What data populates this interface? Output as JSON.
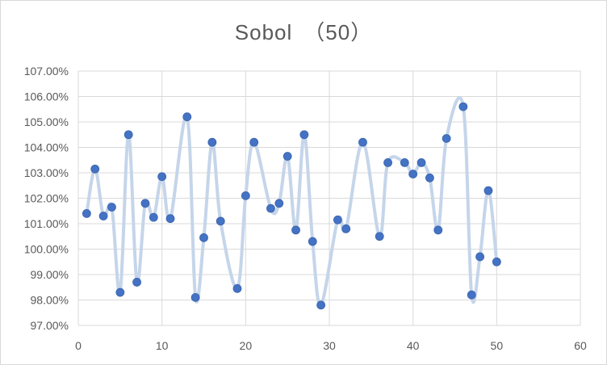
{
  "chart_data": {
    "type": "scatter",
    "title": "Sobol　（50）",
    "xlabel": "",
    "ylabel": "",
    "xlim": [
      0,
      60
    ],
    "ylim": [
      97,
      107
    ],
    "x_ticks": [
      "0",
      "10",
      "20",
      "30",
      "40",
      "50",
      "60"
    ],
    "y_ticks": [
      "97.00%",
      "98.00%",
      "99.00%",
      "100.00%",
      "101.00%",
      "102.00%",
      "103.00%",
      "104.00%",
      "105.00%",
      "106.00%",
      "107.00%"
    ],
    "grid": true,
    "legend": "none",
    "smoothed_line": true,
    "colors": {
      "marker": "#4472c4",
      "line": "#c5d5ea",
      "grid": "#d9d9d9"
    },
    "x": [
      1,
      2,
      3,
      4,
      5,
      6,
      7,
      8,
      9,
      10,
      11,
      12,
      13,
      14,
      15,
      16,
      17,
      18,
      19,
      20,
      21,
      22,
      23,
      24,
      25,
      26,
      27,
      28,
      29,
      30,
      31,
      32,
      33,
      34,
      35,
      36,
      37,
      38,
      39,
      40,
      41,
      42,
      43,
      44,
      45,
      46,
      47,
      48,
      49,
      50
    ],
    "y": [
      101.4,
      103.15,
      101.3,
      101.65,
      98.3,
      104.5,
      98.7,
      101.8,
      101.25,
      102.85,
      101.2,
      null,
      105.2,
      98.1,
      100.45,
      104.2,
      101.1,
      null,
      98.45,
      102.1,
      104.2,
      null,
      101.6,
      101.8,
      103.65,
      100.75,
      104.5,
      100.3,
      97.8,
      null,
      101.15,
      100.8,
      null,
      104.2,
      null,
      100.5,
      103.4,
      null,
      103.4,
      102.95,
      103.4,
      102.8,
      100.75,
      104.35,
      null,
      105.6,
      98.2,
      99.7,
      102.3,
      99.5
    ]
  }
}
